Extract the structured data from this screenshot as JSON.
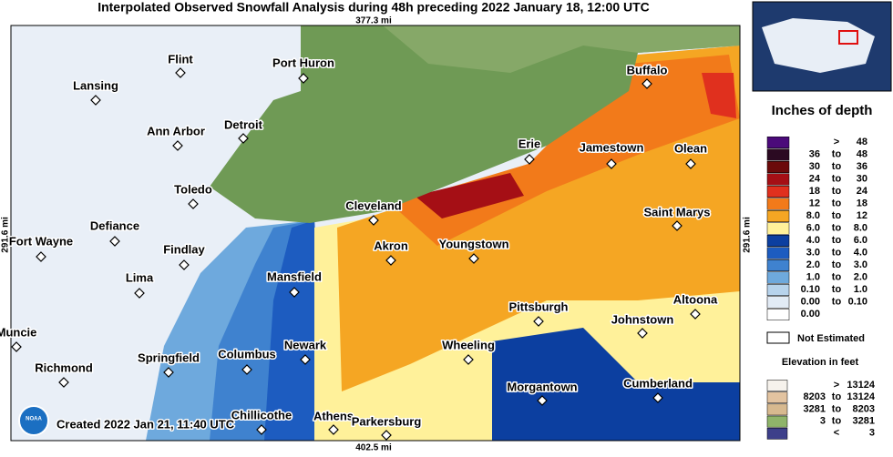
{
  "header": {
    "title": "Interpolated Observed Snowfall Analysis during 48h preceding 2022 January 18, 12:00 UTC",
    "top_scale": "377.3 mi",
    "bottom_scale": "402.5 mi",
    "left_scale": "291.6 mi",
    "right_scale": "291.6 mi"
  },
  "map": {
    "cities": [
      "Flint",
      "Port Huron",
      "Lansing",
      "Ann Arbor",
      "Detroit",
      "Buffalo",
      "Toledo",
      "Erie",
      "Jamestown",
      "Olean",
      "Cleveland",
      "Defiance",
      "Fort Wayne",
      "Findlay",
      "Akron",
      "Youngstown",
      "Saint Marys",
      "Lima",
      "Mansfield",
      "Pittsburgh",
      "Altoona",
      "Johnstown",
      "Muncie",
      "Newark",
      "Wheeling",
      "Springfield",
      "Columbus",
      "Richmond",
      "Morgantown",
      "Cumberland",
      "Chillicothe",
      "Athens",
      "Parkersburg"
    ],
    "created": "Created 2022 Jan 21, 11:40 UTC",
    "logo": "NOAA"
  },
  "legend": {
    "title": "Inches of depth",
    "rows": [
      {
        "sep": ">",
        "high": "48",
        "color": "#4b0a7a"
      },
      {
        "low": "36",
        "sep": "to",
        "high": "48",
        "color": "#2b0a22"
      },
      {
        "low": "30",
        "sep": "to",
        "high": "36",
        "color": "#6b0a0a"
      },
      {
        "low": "24",
        "sep": "to",
        "high": "30",
        "color": "#a50f15"
      },
      {
        "low": "18",
        "sep": "to",
        "high": "24",
        "color": "#e0301e"
      },
      {
        "low": "12",
        "sep": "to",
        "high": "18",
        "color": "#f27a1a"
      },
      {
        "low": "8.0",
        "sep": "to",
        "high": "12",
        "color": "#f5a623"
      },
      {
        "low": "6.0",
        "sep": "to",
        "high": "8.0",
        "color": "#fff19a"
      },
      {
        "low": "4.0",
        "sep": "to",
        "high": "6.0",
        "color": "#0c3fa0"
      },
      {
        "low": "3.0",
        "sep": "to",
        "high": "4.0",
        "color": "#1d5cc0"
      },
      {
        "low": "2.0",
        "sep": "to",
        "high": "3.0",
        "color": "#3f82cf"
      },
      {
        "low": "1.0",
        "sep": "to",
        "high": "2.0",
        "color": "#6ea9dd"
      },
      {
        "low": "0.10",
        "sep": "to",
        "high": "1.0",
        "color": "#b7d3ec"
      },
      {
        "low": "0.00",
        "sep": "to",
        "high": "0.10",
        "color": "#e2ebf5"
      },
      {
        "low": "0.00",
        "color": "#ffffff"
      }
    ],
    "not_estimated": "Not Estimated"
  },
  "elevation": {
    "title": "Elevation in feet",
    "rows": [
      {
        "sep": ">",
        "high": "13124",
        "color": "#f6f2ec"
      },
      {
        "low": "8203",
        "sep": "to",
        "high": "13124",
        "color": "#e2c3a0"
      },
      {
        "low": "3281",
        "sep": "to",
        "high": "8203",
        "color": "#d7b98f"
      },
      {
        "low": "3",
        "sep": "to",
        "high": "3281",
        "color": "#8fb46a"
      },
      {
        "sep": "<",
        "high": "3",
        "color": "#3d3f8a"
      }
    ]
  }
}
